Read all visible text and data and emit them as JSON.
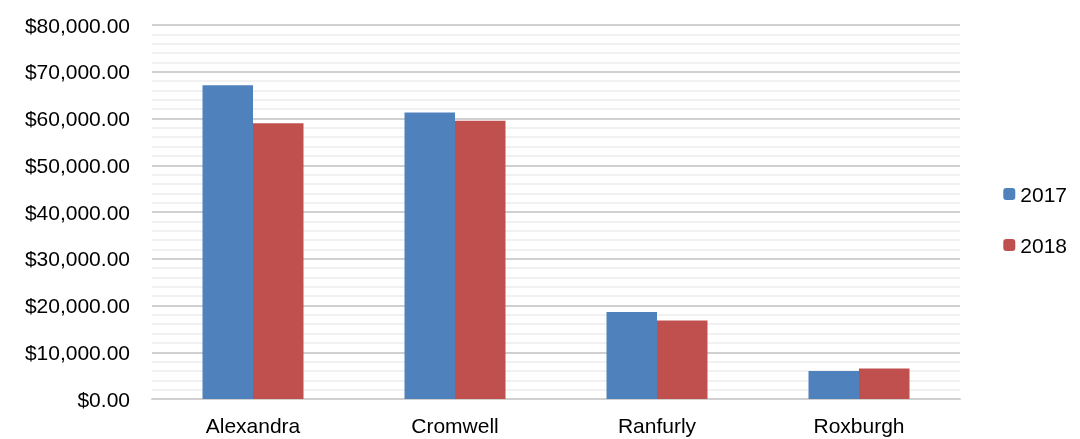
{
  "chart_data": {
    "type": "bar",
    "categories": [
      "Alexandra",
      "Cromwell",
      "Ranfurly",
      "Roxburgh"
    ],
    "series": [
      {
        "name": "2017",
        "color": "#4f81bd",
        "values": [
          67100,
          61300,
          18600,
          6000
        ]
      },
      {
        "name": "2018",
        "color": "#c0504d",
        "values": [
          59000,
          59500,
          16800,
          6500
        ]
      }
    ],
    "ylim": [
      0,
      80000
    ],
    "yticks": [
      {
        "value": 0,
        "label": "$0.00"
      },
      {
        "value": 10000,
        "label": "$10,000.00"
      },
      {
        "value": 20000,
        "label": "$20,000.00"
      },
      {
        "value": 30000,
        "label": "$30,000.00"
      },
      {
        "value": 40000,
        "label": "$40,000.00"
      },
      {
        "value": 50000,
        "label": "$50,000.00"
      },
      {
        "value": 60000,
        "label": "$60,000.00"
      },
      {
        "value": 70000,
        "label": "$70,000.00"
      },
      {
        "value": 80000,
        "label": "$80,000.00"
      }
    ],
    "grid": true,
    "legend": "right"
  }
}
